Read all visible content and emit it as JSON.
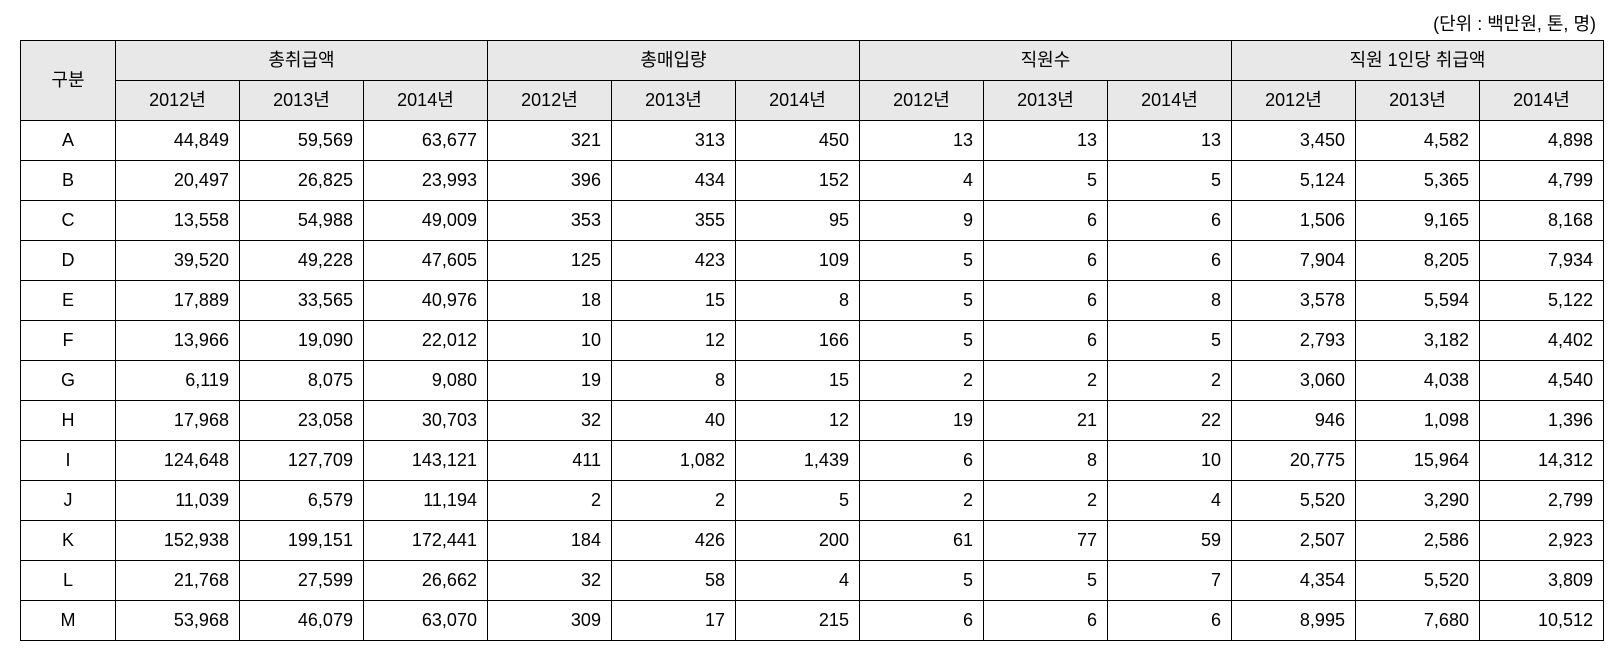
{
  "unit_label": "(단위 : 백만원, 톤, 명)",
  "header": {
    "gubun": "구분",
    "groups": [
      "총취급액",
      "총매입량",
      "직원수",
      "직원 1인당 취급액"
    ],
    "years": [
      "2012년",
      "2013년",
      "2014년"
    ]
  },
  "rows": [
    {
      "label": "A",
      "values": [
        "44,849",
        "59,569",
        "63,677",
        "321",
        "313",
        "450",
        "13",
        "13",
        "13",
        "3,450",
        "4,582",
        "4,898"
      ]
    },
    {
      "label": "B",
      "values": [
        "20,497",
        "26,825",
        "23,993",
        "396",
        "434",
        "152",
        "4",
        "5",
        "5",
        "5,124",
        "5,365",
        "4,799"
      ]
    },
    {
      "label": "C",
      "values": [
        "13,558",
        "54,988",
        "49,009",
        "353",
        "355",
        "95",
        "9",
        "6",
        "6",
        "1,506",
        "9,165",
        "8,168"
      ]
    },
    {
      "label": "D",
      "values": [
        "39,520",
        "49,228",
        "47,605",
        "125",
        "423",
        "109",
        "5",
        "6",
        "6",
        "7,904",
        "8,205",
        "7,934"
      ]
    },
    {
      "label": "E",
      "values": [
        "17,889",
        "33,565",
        "40,976",
        "18",
        "15",
        "8",
        "5",
        "6",
        "8",
        "3,578",
        "5,594",
        "5,122"
      ]
    },
    {
      "label": "F",
      "values": [
        "13,966",
        "19,090",
        "22,012",
        "10",
        "12",
        "166",
        "5",
        "6",
        "5",
        "2,793",
        "3,182",
        "4,402"
      ]
    },
    {
      "label": "G",
      "values": [
        "6,119",
        "8,075",
        "9,080",
        "19",
        "8",
        "15",
        "2",
        "2",
        "2",
        "3,060",
        "4,038",
        "4,540"
      ]
    },
    {
      "label": "H",
      "values": [
        "17,968",
        "23,058",
        "30,703",
        "32",
        "40",
        "12",
        "19",
        "21",
        "22",
        "946",
        "1,098",
        "1,396"
      ]
    },
    {
      "label": "I",
      "values": [
        "124,648",
        "127,709",
        "143,121",
        "411",
        "1,082",
        "1,439",
        "6",
        "8",
        "10",
        "20,775",
        "15,964",
        "14,312"
      ]
    },
    {
      "label": "J",
      "values": [
        "11,039",
        "6,579",
        "11,194",
        "2",
        "2",
        "5",
        "2",
        "2",
        "4",
        "5,520",
        "3,290",
        "2,799"
      ]
    },
    {
      "label": "K",
      "values": [
        "152,938",
        "199,151",
        "172,441",
        "184",
        "426",
        "200",
        "61",
        "77",
        "59",
        "2,507",
        "2,586",
        "2,923"
      ]
    },
    {
      "label": "L",
      "values": [
        "21,768",
        "27,599",
        "26,662",
        "32",
        "58",
        "4",
        "5",
        "5",
        "7",
        "4,354",
        "5,520",
        "3,809"
      ]
    },
    {
      "label": "M",
      "values": [
        "53,968",
        "46,079",
        "63,070",
        "309",
        "17",
        "215",
        "6",
        "6",
        "6",
        "8,995",
        "7,680",
        "10,512"
      ]
    }
  ],
  "style": {
    "header_bg": "#e8e8e8",
    "border_color": "#000000",
    "font_size": 18,
    "num_groups": 4,
    "years_per_group": 3
  }
}
